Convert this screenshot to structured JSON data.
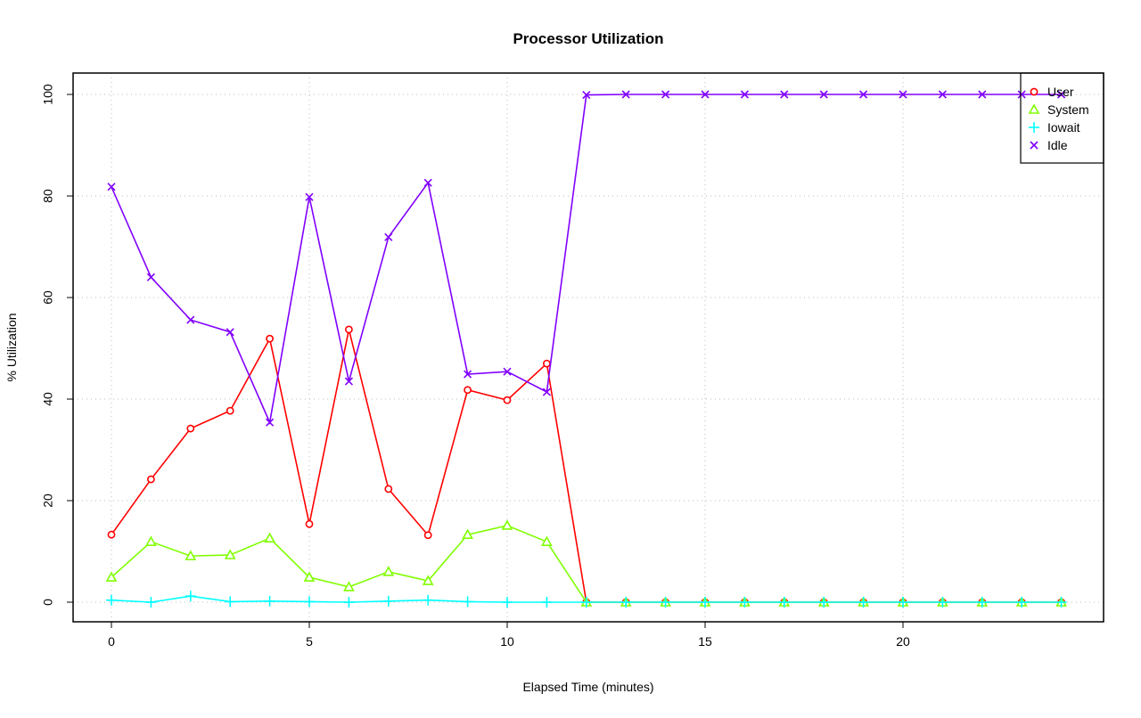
{
  "chart_data": {
    "type": "line",
    "title": "Processor Utilization",
    "xlabel": "Elapsed Time (minutes)",
    "ylabel": "% Utilization",
    "xlim": [
      -1,
      25
    ],
    "ylim": [
      -4,
      104
    ],
    "xticks": [
      0,
      5,
      10,
      15,
      20
    ],
    "yticks": [
      0,
      20,
      40,
      60,
      80,
      100
    ],
    "grid": true,
    "legend_position": "top-right",
    "x": [
      0,
      1,
      2,
      3,
      4,
      5,
      6,
      7,
      8,
      9,
      10,
      11,
      12,
      13,
      14,
      15,
      16,
      17,
      18,
      19,
      20,
      21,
      22,
      23,
      24
    ],
    "series": [
      {
        "name": "User",
        "color": "#ff0000",
        "marker": "circle",
        "values": [
          13.3,
          24.2,
          34.2,
          37.7,
          51.9,
          15.4,
          53.7,
          22.3,
          13.2,
          41.8,
          39.8,
          47.0,
          0,
          0,
          0,
          0,
          0,
          0,
          0,
          0,
          0,
          0,
          0,
          0,
          0
        ]
      },
      {
        "name": "System",
        "color": "#80ff00",
        "marker": "triangle",
        "values": [
          4.9,
          11.9,
          9.1,
          9.3,
          12.6,
          4.9,
          3.0,
          6.0,
          4.2,
          13.3,
          15.1,
          11.9,
          0,
          0,
          0,
          0,
          0,
          0,
          0,
          0,
          0,
          0,
          0,
          0,
          0
        ]
      },
      {
        "name": "Iowait",
        "color": "#00ffff",
        "marker": "plus",
        "values": [
          0.4,
          0,
          1.2,
          0.1,
          0.2,
          0.1,
          0,
          0.2,
          0.4,
          0.1,
          0,
          0,
          0,
          0,
          0,
          0,
          0,
          0,
          0,
          0,
          0,
          0,
          0,
          0,
          0
        ]
      },
      {
        "name": "Idle",
        "color": "#8000ff",
        "marker": "cross",
        "values": [
          81.8,
          64.0,
          55.6,
          53.2,
          35.4,
          79.8,
          43.5,
          71.9,
          82.6,
          44.9,
          45.4,
          41.4,
          99.9,
          100,
          100,
          100,
          100,
          100,
          100,
          100,
          100,
          100,
          100,
          100,
          100
        ]
      }
    ]
  }
}
